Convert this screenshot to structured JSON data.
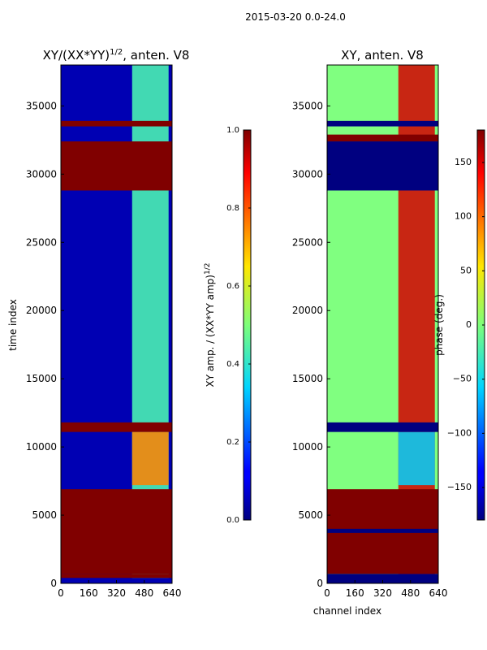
{
  "figure": {
    "suptitle": "2015-03-20 0.0-24.0"
  },
  "chart_data": [
    {
      "type": "heatmap",
      "title": "XY/(XX*YY)^1/2, anten. V8",
      "title_main": "XY/(XX*YY)",
      "title_exp": "1/2",
      "title_tail": ", anten. V8",
      "xlabel": "",
      "ylabel": "time index",
      "xlim": [
        0,
        640
      ],
      "ylim": [
        0,
        38000
      ],
      "xticks": [
        "0",
        "160",
        "320",
        "480",
        "640"
      ],
      "yticks": [
        "0",
        "5000",
        "10000",
        "15000",
        "20000",
        "25000",
        "30000",
        "35000"
      ],
      "colormap": "jet",
      "colorbar": {
        "label": "XY amp. / (XX*YY amp)^1/2",
        "label_main": "XY amp. / (XX*YY amp)",
        "label_exp": "1/2",
        "range": [
          0.0,
          1.0
        ],
        "ticks": [
          "0.0",
          "0.2",
          "0.4",
          "0.6",
          "0.8",
          "1.0"
        ]
      },
      "background_value": 0.05,
      "bands": [
        {
          "t0": 0,
          "t1": 400,
          "value": 0.05
        },
        {
          "t0": 400,
          "t1": 700,
          "value": 1.0
        },
        {
          "t0": 700,
          "t1": 6900,
          "value": 1.0
        },
        {
          "t0": 11100,
          "t1": 11800,
          "value": 1.0
        },
        {
          "t0": 28800,
          "t1": 32400,
          "value": 1.0
        },
        {
          "t0": 33500,
          "t1": 33900,
          "value": 1.0
        }
      ],
      "feature": {
        "x0": 410,
        "x1": 620,
        "value": 0.45
      },
      "hot_region": {
        "t0": 7200,
        "t1": 11100,
        "x0": 410,
        "x1": 620,
        "value": 0.75
      }
    },
    {
      "type": "heatmap",
      "title": "XY, anten. V8",
      "xlabel": "channel index",
      "ylabel": "",
      "xlim": [
        0,
        640
      ],
      "ylim": [
        0,
        38000
      ],
      "xticks": [
        "0",
        "160",
        "320",
        "480",
        "640"
      ],
      "yticks": [
        "0",
        "5000",
        "10000",
        "15000",
        "20000",
        "25000",
        "30000",
        "35000"
      ],
      "colormap": "jet",
      "colorbar": {
        "label": "phase (deg.)",
        "range": [
          -180,
          180
        ],
        "ticks": [
          "−150",
          "−100",
          "−50",
          "0",
          "50",
          "100",
          "150"
        ],
        "tick_values": [
          -150,
          -100,
          -50,
          0,
          50,
          100,
          150
        ]
      },
      "background_value": 0,
      "bands": [
        {
          "t0": 0,
          "t1": 700,
          "value": -180
        },
        {
          "t0": 700,
          "t1": 6900,
          "value": 180
        },
        {
          "t0": 3700,
          "t1": 4000,
          "value": -180
        },
        {
          "t0": 11100,
          "t1": 11800,
          "value": -180
        },
        {
          "t0": 28800,
          "t1": 32400,
          "value": -180
        },
        {
          "t0": 32400,
          "t1": 32900,
          "value": 180
        },
        {
          "t0": 33500,
          "t1": 33900,
          "value": -180
        }
      ],
      "feature": {
        "x0": 410,
        "x1": 620,
        "value": 150
      },
      "cold_region": {
        "t0": 7200,
        "t1": 11100,
        "x0": 410,
        "x1": 620,
        "value": -60
      }
    }
  ]
}
